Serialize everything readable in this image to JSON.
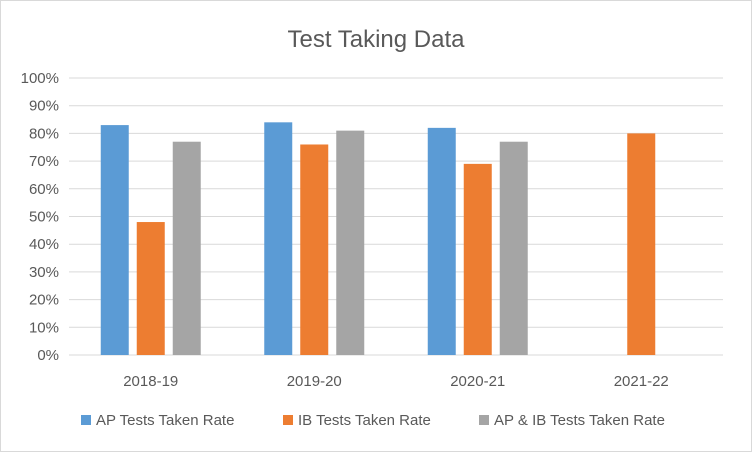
{
  "chart_data": {
    "type": "bar",
    "title": "Test Taking Data",
    "xlabel": "",
    "ylabel": "",
    "categories": [
      "2018-19",
      "2019-20",
      "2020-21",
      "2021-22"
    ],
    "series": [
      {
        "name": "AP Tests Taken Rate",
        "color": "#5b9bd5",
        "values": [
          83,
          84,
          82,
          null
        ]
      },
      {
        "name": "IB Tests Taken Rate",
        "color": "#ed7d31",
        "values": [
          48,
          76,
          69,
          80
        ]
      },
      {
        "name": "AP & IB Tests Taken Rate",
        "color": "#a5a5a5",
        "values": [
          77,
          81,
          77,
          null
        ]
      }
    ],
    "ylim": [
      0,
      100
    ],
    "yticks": [
      "0%",
      "10%",
      "20%",
      "30%",
      "40%",
      "50%",
      "60%",
      "70%",
      "80%",
      "90%",
      "100%"
    ],
    "grid": true,
    "legend_position": "bottom",
    "gridline_color": "#d9d9d9",
    "axis_color": "#d9d9d9"
  }
}
